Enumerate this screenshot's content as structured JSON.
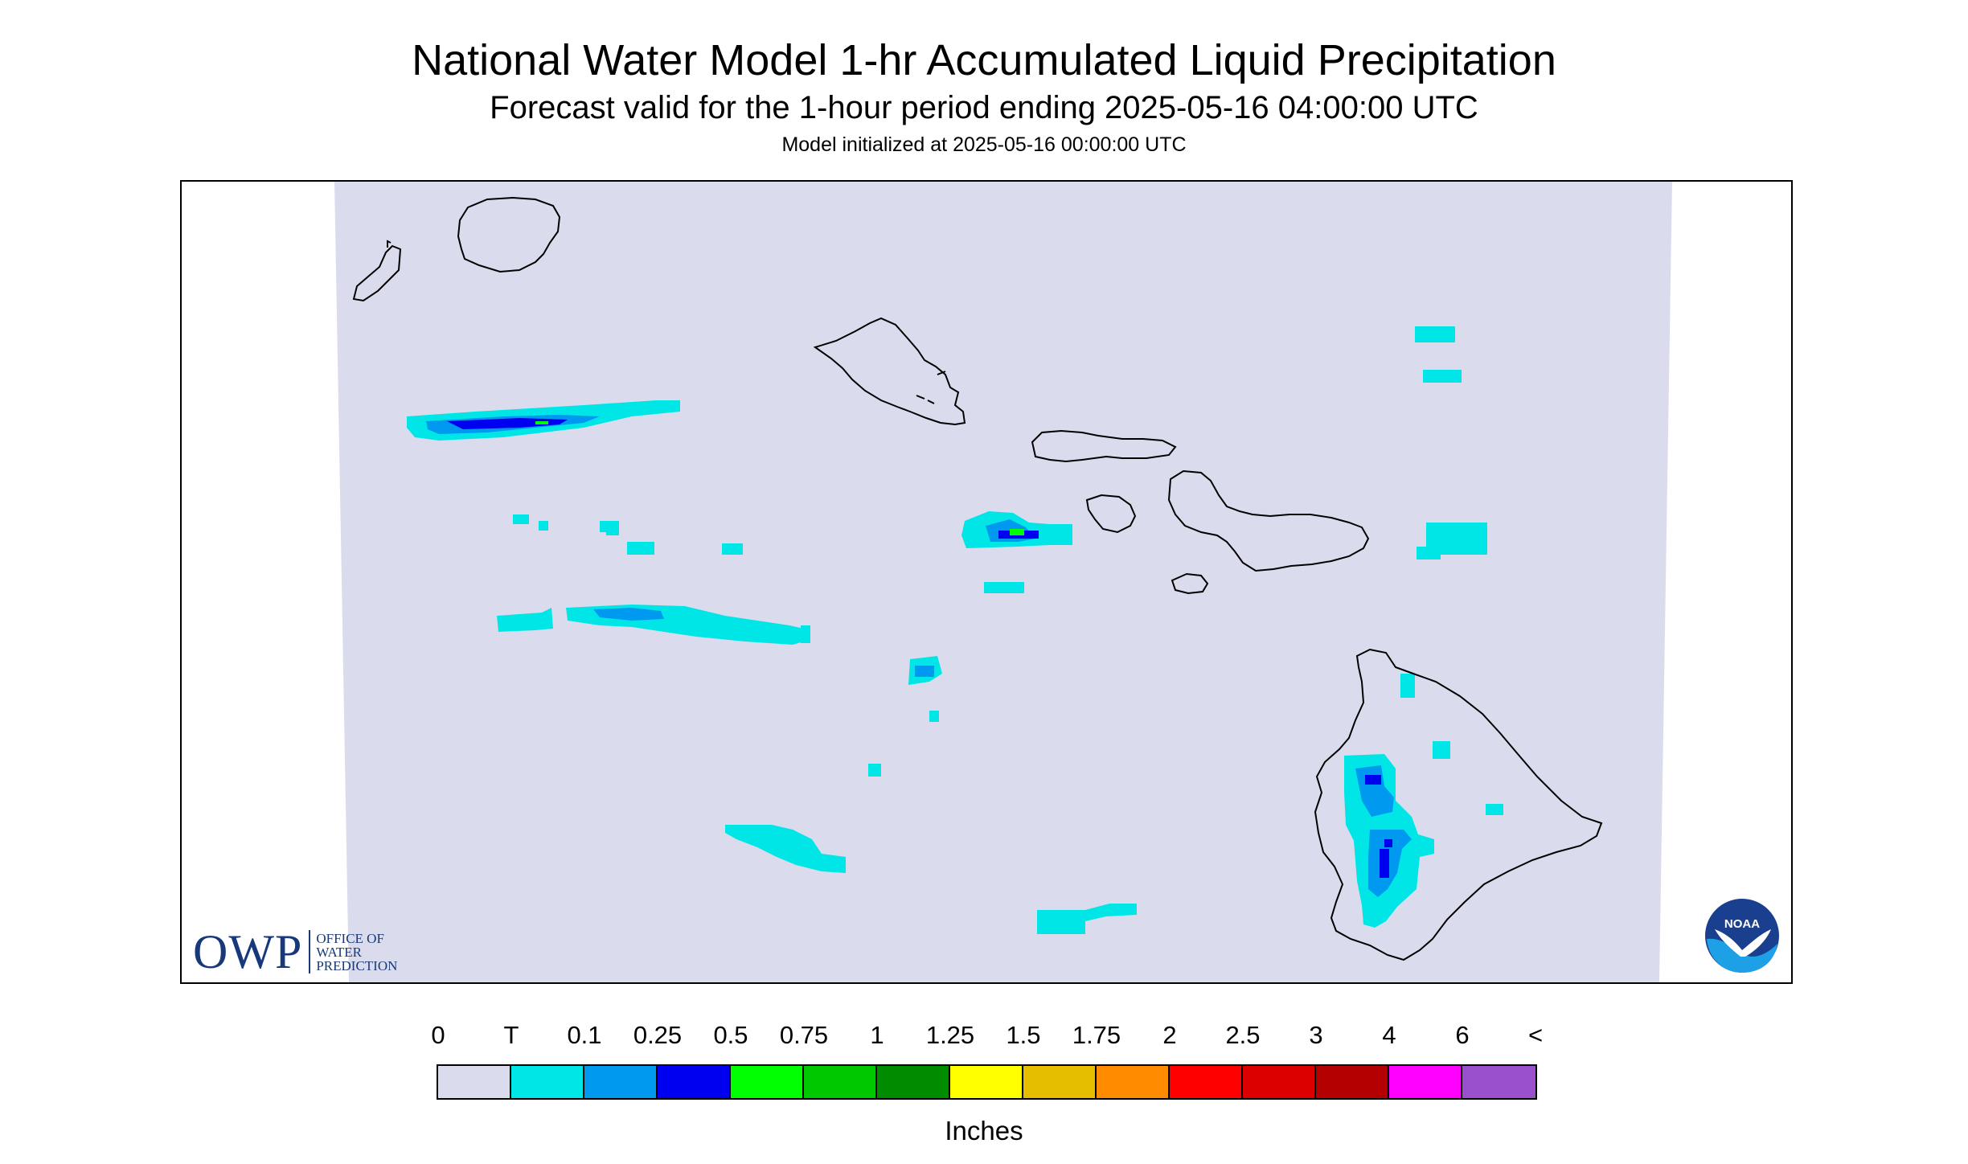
{
  "header": {
    "title": "National Water Model 1-hr Accumulated Liquid Precipitation",
    "subtitle": "Forecast valid for the 1-hour period ending 2025-05-16 04:00:00 UTC",
    "initialized": "Model initialized at 2025-05-16 00:00:00 UTC"
  },
  "logos": {
    "owp_word": "OWP",
    "owp_line1": "OFFICE OF",
    "owp_line2": "WATER",
    "owp_line3": "PREDICTION",
    "noaa_text": "NOAA"
  },
  "colors": {
    "background_field": "#dadced",
    "coastline": "#000000"
  },
  "legend": {
    "unit_label": "Inches",
    "ticks": [
      "0",
      "T",
      "0.1",
      "0.25",
      "0.5",
      "0.75",
      "1",
      "1.25",
      "1.5",
      "1.75",
      "2",
      "2.5",
      "3",
      "4",
      "6",
      "<"
    ],
    "colors": [
      "#dadced",
      "#00e6e6",
      "#0099f0",
      "#0000f0",
      "#00ff00",
      "#00c800",
      "#008c00",
      "#ffff00",
      "#e6be00",
      "#ff8c00",
      "#ff0000",
      "#dc0000",
      "#b40000",
      "#ff00ff",
      "#9a50cc"
    ]
  }
}
